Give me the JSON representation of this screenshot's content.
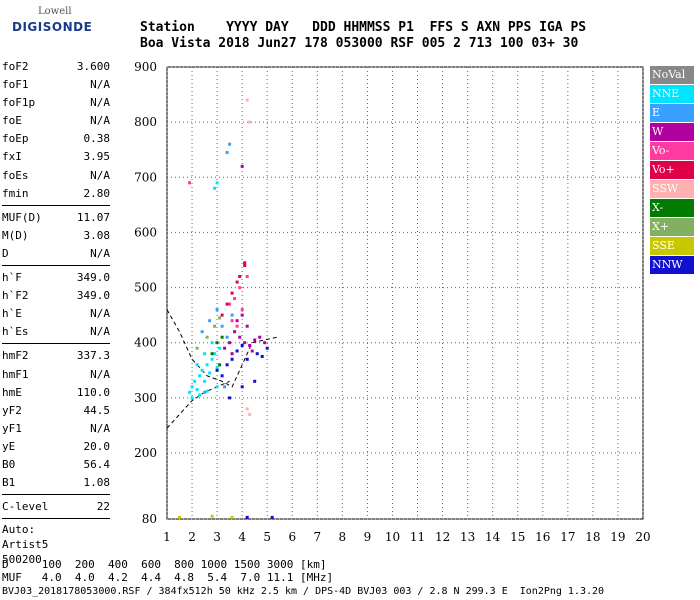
{
  "logo": {
    "brand": "Lowell",
    "name": "DIGISONDE"
  },
  "header": {
    "line1": "Station    YYYY DAY   DDD HHMMSS P1  FFS S AXN PPS IGA PS",
    "line2": "Boa Vista 2018 Jun27 178 053000 RSF 005 2 713 100 03+ 30"
  },
  "params": {
    "group1": [
      {
        "label": "foF2",
        "value": "3.600"
      },
      {
        "label": "foF1",
        "value": "N/A"
      },
      {
        "label": "foF1p",
        "value": "N/A"
      },
      {
        "label": "foE",
        "value": "N/A"
      },
      {
        "label": "foEp",
        "value": "0.38"
      },
      {
        "label": "fxI",
        "value": "3.95"
      },
      {
        "label": "foEs",
        "value": "N/A"
      },
      {
        "label": "fmin",
        "value": "2.80"
      }
    ],
    "group2": [
      {
        "label": "MUF(D)",
        "value": "11.07"
      },
      {
        "label": "M(D)",
        "value": "3.08"
      },
      {
        "label": "D",
        "value": "N/A"
      }
    ],
    "group3": [
      {
        "label": "h`F",
        "value": "349.0"
      },
      {
        "label": "h`F2",
        "value": "349.0"
      },
      {
        "label": "h`E",
        "value": "N/A"
      },
      {
        "label": "h`Es",
        "value": "N/A"
      }
    ],
    "group4": [
      {
        "label": "hmF2",
        "value": "337.3"
      },
      {
        "label": "hmF1",
        "value": "N/A"
      },
      {
        "label": "hmE",
        "value": "110.0"
      },
      {
        "label": "yF2",
        "value": "44.5"
      },
      {
        "label": "yF1",
        "value": "N/A"
      },
      {
        "label": "yE",
        "value": "20.0"
      },
      {
        "label": "B0",
        "value": "56.4"
      },
      {
        "label": "B1",
        "value": "1.08"
      }
    ],
    "group5": [
      {
        "label": "C-level",
        "value": "22"
      }
    ],
    "auto": [
      "Auto:",
      "Artist5",
      "500200"
    ]
  },
  "legend": [
    {
      "label": "NoVal",
      "color": "#888888"
    },
    {
      "label": "NNE",
      "color": "#00e5ff"
    },
    {
      "label": "E",
      "color": "#3aa0ff"
    },
    {
      "label": "W",
      "color": "#b000a0"
    },
    {
      "label": "Vo-",
      "color": "#ff3aa0"
    },
    {
      "label": "Vo+",
      "color": "#e0004a"
    },
    {
      "label": "SSW",
      "color": "#ffb0b0"
    },
    {
      "label": "X-",
      "color": "#007a00"
    },
    {
      "label": "X+",
      "color": "#80b060"
    },
    {
      "label": "SSE",
      "color": "#c8c800"
    },
    {
      "label": "NNW",
      "color": "#1010d0"
    }
  ],
  "footer": {
    "line1": "D     100  200  400  600  800 1000 1500 3000 [km]",
    "line2": "MUF   4.0  4.0  4.2  4.4  4.8  5.4  7.0 11.1 [MHz]",
    "line3": "BVJ03_2018178053000.RSF / 384fx512h 50 kHz 2.5 km / DPS-4D BVJ03 003 / 2.8 N 299.3 E  Ion2Png 1.3.20"
  },
  "chart_data": {
    "type": "scatter",
    "xlim": [
      1,
      20
    ],
    "ylim": [
      80,
      900
    ],
    "x_ticks": [
      1,
      2,
      3,
      4,
      5,
      6,
      7,
      8,
      9,
      10,
      11,
      12,
      13,
      14,
      15,
      16,
      17,
      18,
      19,
      20
    ],
    "y_ticks": [
      80,
      200,
      300,
      400,
      500,
      600,
      700,
      800,
      900
    ],
    "grid": true,
    "series": [
      {
        "name": "NNE",
        "color": "#00e5ff",
        "points": [
          [
            1.9,
            310
          ],
          [
            2.0,
            320
          ],
          [
            2.1,
            330
          ],
          [
            2.2,
            315
          ],
          [
            2.3,
            340
          ],
          [
            2.4,
            350
          ],
          [
            2.5,
            330
          ],
          [
            2.6,
            360
          ],
          [
            2.7,
            345
          ],
          [
            2.8,
            370
          ],
          [
            2.9,
            380
          ],
          [
            3.0,
            355
          ],
          [
            3.1,
            390
          ],
          [
            2.2,
            360
          ],
          [
            2.5,
            380
          ],
          [
            2.8,
            400
          ],
          [
            2.0,
            300
          ],
          [
            2.3,
            305
          ],
          [
            2.6,
            312
          ],
          [
            3.0,
            320
          ],
          [
            2.9,
            680
          ],
          [
            3.0,
            690
          ]
        ]
      },
      {
        "name": "E",
        "color": "#3aa0ff",
        "points": [
          [
            2.4,
            420
          ],
          [
            2.7,
            440
          ],
          [
            3.0,
            460
          ],
          [
            3.2,
            430
          ],
          [
            3.4,
            410
          ],
          [
            3.6,
            450
          ],
          [
            2.5,
            310
          ],
          [
            3.3,
            320
          ],
          [
            3.5,
            760
          ],
          [
            3.4,
            745
          ]
        ]
      },
      {
        "name": "W",
        "color": "#b000a0",
        "points": [
          [
            3.3,
            390
          ],
          [
            3.5,
            400
          ],
          [
            3.7,
            420
          ],
          [
            3.9,
            410
          ],
          [
            4.1,
            400
          ],
          [
            4.3,
            395
          ],
          [
            4.5,
            405
          ],
          [
            4.7,
            410
          ],
          [
            4.9,
            400
          ],
          [
            3.8,
            440
          ],
          [
            4.0,
            450
          ],
          [
            4.2,
            430
          ],
          [
            3.6,
            380
          ],
          [
            4.4,
            385
          ],
          [
            4.0,
            720
          ]
        ]
      },
      {
        "name": "Vo-",
        "color": "#ff3aa0",
        "points": [
          [
            3.5,
            470
          ],
          [
            3.7,
            480
          ],
          [
            3.9,
            500
          ],
          [
            4.0,
            460
          ],
          [
            3.6,
            440
          ],
          [
            3.8,
            430
          ],
          [
            1.9,
            690
          ],
          [
            4.2,
            520
          ]
        ]
      },
      {
        "name": "Vo+",
        "color": "#e0004a",
        "points": [
          [
            3.2,
            450
          ],
          [
            3.4,
            470
          ],
          [
            3.6,
            490
          ],
          [
            3.8,
            510
          ],
          [
            4.1,
            540
          ],
          [
            3.9,
            520
          ],
          [
            4.1,
            545
          ]
        ]
      },
      {
        "name": "SSW",
        "color": "#ffb0b0",
        "points": [
          [
            4.2,
            840
          ],
          [
            4.3,
            800
          ],
          [
            4.3,
            270
          ],
          [
            4.2,
            280
          ]
        ]
      },
      {
        "name": "X-",
        "color": "#007a00",
        "points": [
          [
            3.0,
            400
          ],
          [
            3.2,
            410
          ],
          [
            2.8,
            380
          ],
          [
            3.1,
            360
          ]
        ]
      },
      {
        "name": "X+",
        "color": "#80b060",
        "points": [
          [
            2.2,
            390
          ],
          [
            2.6,
            410
          ],
          [
            2.9,
            430
          ],
          [
            3.1,
            445
          ]
        ]
      },
      {
        "name": "SSE",
        "color": "#c8c800",
        "points": [
          [
            1.5,
            83
          ],
          [
            2.8,
            85
          ],
          [
            3.6,
            83
          ]
        ]
      },
      {
        "name": "NNW",
        "color": "#1010d0",
        "points": [
          [
            3.0,
            350
          ],
          [
            3.2,
            340
          ],
          [
            3.4,
            360
          ],
          [
            3.6,
            370
          ],
          [
            3.8,
            385
          ],
          [
            4.0,
            395
          ],
          [
            4.2,
            370
          ],
          [
            4.6,
            380
          ],
          [
            5.0,
            390
          ],
          [
            4.8,
            375
          ],
          [
            3.5,
            300
          ],
          [
            4.0,
            320
          ],
          [
            4.5,
            330
          ],
          [
            4.2,
            83
          ],
          [
            5.2,
            83
          ]
        ]
      }
    ],
    "profile_lines": [
      {
        "style": "dashed",
        "points": [
          [
            1.0,
            460
          ],
          [
            1.5,
            420
          ],
          [
            2.0,
            370
          ],
          [
            2.6,
            340
          ],
          [
            3.2,
            330
          ],
          [
            3.6,
            320
          ],
          [
            4.0,
            360
          ],
          [
            4.4,
            400
          ],
          [
            5.4,
            410
          ]
        ]
      },
      {
        "style": "dashed",
        "points": [
          [
            1.0,
            245
          ],
          [
            1.5,
            270
          ],
          [
            2.0,
            295
          ],
          [
            2.5,
            310
          ],
          [
            3.0,
            320
          ],
          [
            3.5,
            330
          ]
        ]
      }
    ]
  }
}
